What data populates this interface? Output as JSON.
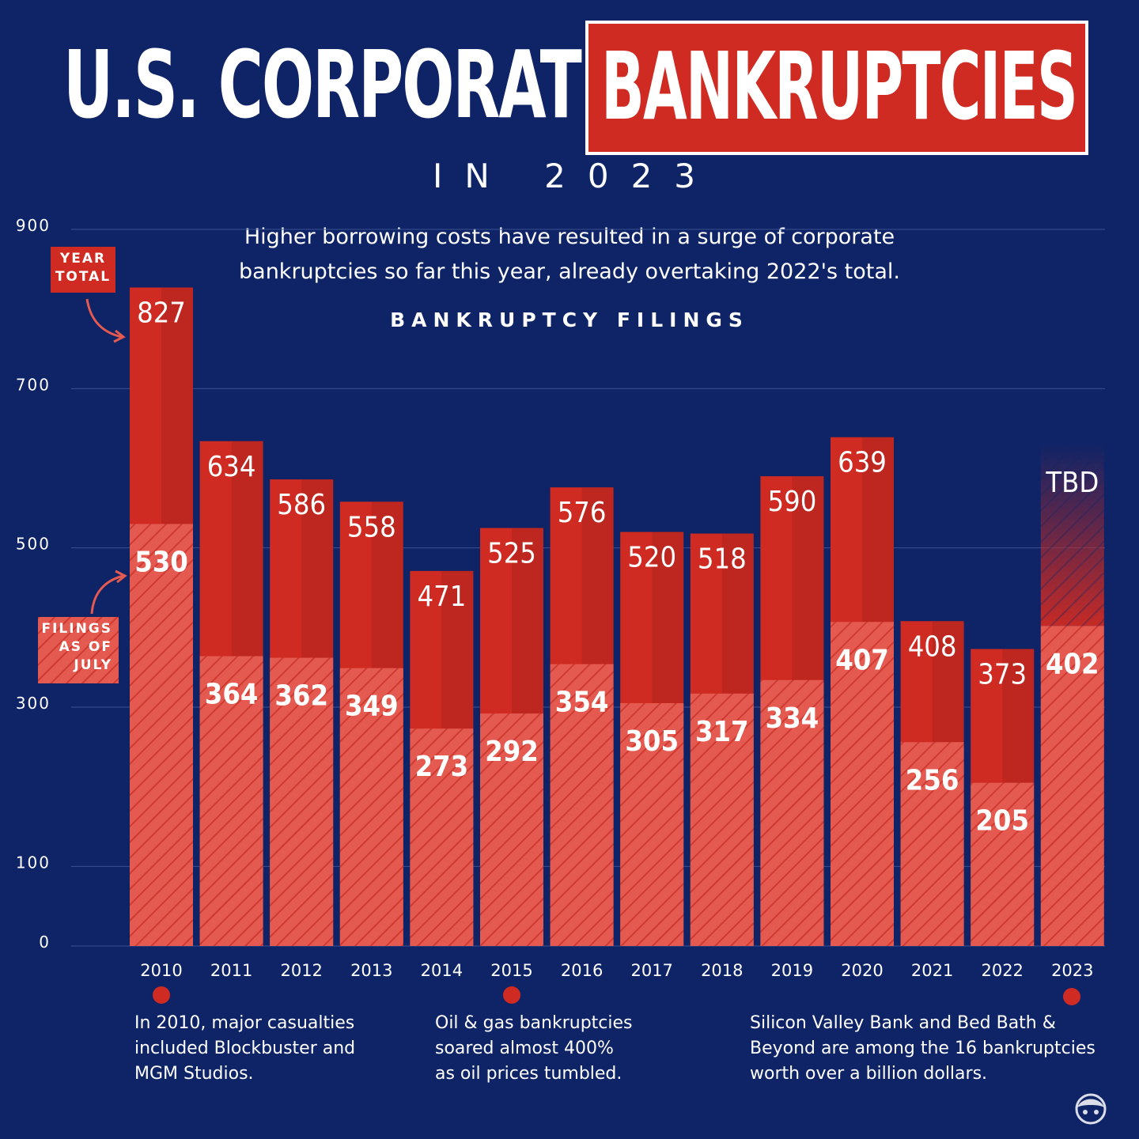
{
  "header": {
    "title_main": "U.S. CORPORATE",
    "title_highlight": "BANKRUPTCIES",
    "subtitle": "IN 2023",
    "description_line1": "Higher borrowing costs have resulted in a surge of corporate",
    "description_line2": "bankruptcies so far this year, already overtaking 2022's total."
  },
  "legend": {
    "year_total_line1": "YEAR",
    "year_total_line2": "TOTAL",
    "filings_line1": "FILINGS",
    "filings_line2": "AS OF",
    "filings_line3": "JULY"
  },
  "notes": [
    {
      "line1": "In 2010, major casualties",
      "line2": "included Blockbuster and",
      "line3": "MGM Studios."
    },
    {
      "line1": "Oil & gas bankruptcies",
      "line2": "soared almost 400%",
      "line3": "as oil prices tumbled."
    },
    {
      "line1": "Silicon Valley Bank and Bed Bath &",
      "line2": "Beyond are among the 16 bankruptcies",
      "line3": "worth over a billion dollars."
    }
  ],
  "chart_data": {
    "type": "bar",
    "title": "BANKRUPTCY FILINGS",
    "categories": [
      "2010",
      "2011",
      "2012",
      "2013",
      "2014",
      "2015",
      "2016",
      "2017",
      "2018",
      "2019",
      "2020",
      "2021",
      "2022",
      "2023"
    ],
    "series": [
      {
        "name": "YEAR TOTAL",
        "values": [
          827,
          634,
          586,
          558,
          471,
          525,
          576,
          520,
          518,
          590,
          639,
          408,
          373,
          null
        ],
        "labels": [
          "827",
          "634",
          "586",
          "558",
          "471",
          "525",
          "576",
          "520",
          "518",
          "590",
          "639",
          "408",
          "373",
          "TBD"
        ]
      },
      {
        "name": "FILINGS AS OF JULY",
        "values": [
          530,
          364,
          362,
          349,
          273,
          292,
          354,
          305,
          317,
          334,
          407,
          256,
          205,
          402
        ]
      }
    ],
    "yticks": [
      0,
      100,
      300,
      500,
      700,
      900
    ],
    "ylim": [
      0,
      900
    ],
    "grid": true,
    "colors": {
      "background": "#0f2467",
      "total": "#cf2b22",
      "july": "#e45a50",
      "grid": "#3a4f8f"
    }
  }
}
